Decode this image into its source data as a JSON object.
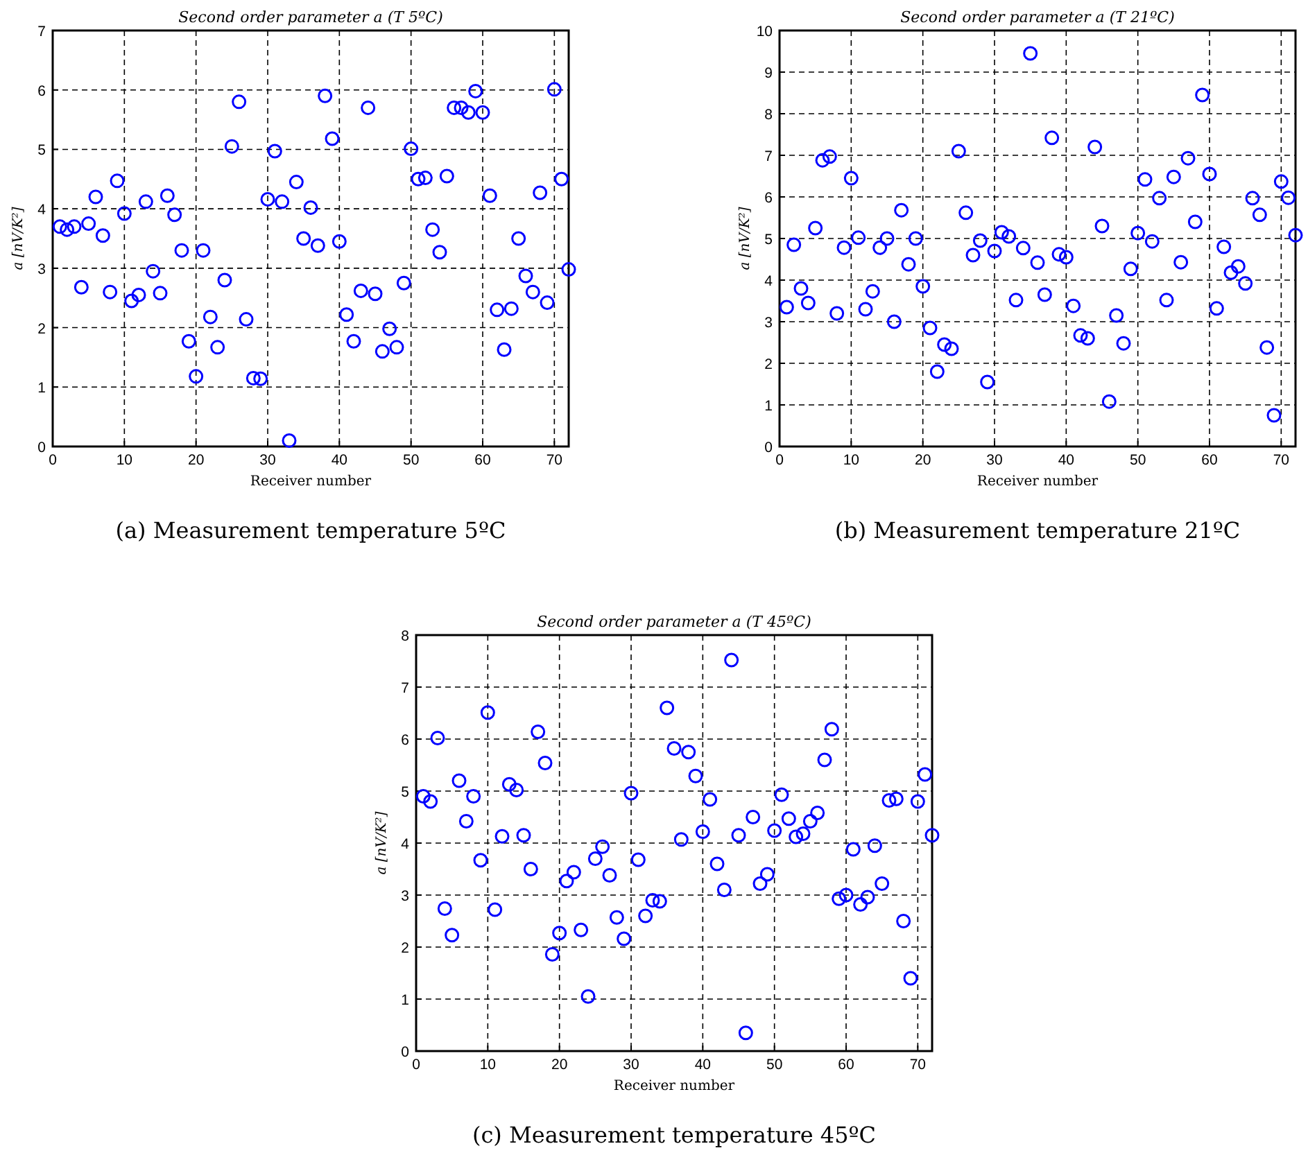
{
  "chart_data": [
    {
      "type": "scatter",
      "title": "Second order parameter a (T 5ºC)",
      "xlabel": "Receiver number",
      "ylabel": "a [nV/K²]",
      "annotations": [
        "(a) Measurement temperature 5ºC"
      ],
      "xlim": [
        0,
        72
      ],
      "xticks": [
        0,
        10,
        20,
        30,
        40,
        50,
        60,
        70
      ],
      "ylim": [
        0,
        7
      ],
      "yticks": [
        0,
        1,
        2,
        3,
        4,
        5,
        6,
        7
      ],
      "grid": true,
      "marker": "circle",
      "x": [
        1,
        2,
        3,
        4,
        5,
        6,
        7,
        8,
        9,
        10,
        11,
        12,
        13,
        14,
        15,
        16,
        17,
        18,
        19,
        20,
        21,
        22,
        23,
        24,
        25,
        26,
        27,
        28,
        29,
        30,
        31,
        32,
        33,
        34,
        35,
        36,
        37,
        38,
        39,
        40,
        41,
        42,
        43,
        44,
        45,
        46,
        47,
        48,
        49,
        50,
        51,
        52,
        53,
        54,
        55,
        56,
        57,
        58,
        59,
        60,
        61,
        62,
        63,
        64,
        65,
        66,
        67,
        68,
        69,
        70,
        71,
        72
      ],
      "series": [
        {
          "color": "#0000ff",
          "values": [
            3.7,
            3.65,
            3.7,
            2.68,
            3.75,
            4.2,
            3.55,
            2.6,
            4.47,
            3.92,
            2.45,
            2.55,
            4.12,
            2.95,
            2.58,
            4.22,
            3.9,
            3.3,
            1.77,
            1.18,
            3.3,
            2.18,
            1.67,
            2.8,
            5.05,
            5.8,
            2.14,
            1.15,
            1.14,
            4.16,
            4.97,
            4.12,
            0.1,
            4.45,
            3.5,
            4.02,
            3.38,
            5.9,
            5.18,
            3.45,
            2.22,
            1.77,
            2.62,
            5.7,
            2.57,
            1.6,
            1.98,
            1.67,
            2.75,
            5.01,
            4.5,
            4.52,
            3.65,
            3.27,
            4.55,
            5.7,
            5.7,
            5.62,
            5.98,
            5.62,
            4.22,
            2.3,
            1.63,
            2.32,
            3.5,
            2.87,
            2.6,
            4.27,
            2.42,
            6.01,
            4.5,
            2.98
          ]
        }
      ]
    },
    {
      "type": "scatter",
      "title": "Second order parameter a (T 21ºC)",
      "xlabel": "Receiver number",
      "ylabel": "a [nV/K²]",
      "annotations": [
        "(b) Measurement temperature 21ºC"
      ],
      "xlim": [
        0,
        72
      ],
      "xticks": [
        0,
        10,
        20,
        30,
        40,
        50,
        60,
        70
      ],
      "ylim": [
        0,
        10
      ],
      "yticks": [
        0,
        1,
        2,
        3,
        4,
        5,
        6,
        7,
        8,
        9,
        10
      ],
      "grid": true,
      "marker": "circle",
      "x": [
        1,
        2,
        3,
        4,
        5,
        6,
        7,
        8,
        9,
        10,
        11,
        12,
        13,
        14,
        15,
        16,
        17,
        18,
        19,
        20,
        21,
        22,
        23,
        24,
        25,
        26,
        27,
        28,
        29,
        30,
        31,
        32,
        33,
        34,
        35,
        36,
        37,
        38,
        39,
        40,
        41,
        42,
        43,
        44,
        45,
        46,
        47,
        48,
        49,
        50,
        51,
        52,
        53,
        54,
        55,
        56,
        57,
        58,
        59,
        60,
        61,
        62,
        63,
        64,
        65,
        66,
        67,
        68,
        69,
        70,
        71,
        72
      ],
      "series": [
        {
          "color": "#0000ff",
          "values": [
            3.35,
            4.85,
            3.8,
            3.45,
            5.25,
            6.88,
            6.97,
            3.2,
            4.78,
            6.45,
            5.02,
            3.3,
            3.73,
            4.78,
            5.0,
            3.0,
            5.68,
            4.38,
            5.0,
            3.85,
            2.85,
            1.8,
            2.45,
            2.35,
            7.1,
            5.62,
            4.6,
            4.95,
            1.55,
            4.7,
            5.15,
            5.05,
            3.52,
            4.77,
            9.45,
            4.42,
            3.65,
            7.42,
            4.62,
            4.55,
            3.38,
            2.67,
            2.6,
            7.2,
            5.3,
            1.08,
            3.15,
            2.48,
            4.27,
            5.13,
            6.42,
            4.93,
            5.97,
            3.52,
            6.48,
            4.43,
            6.93,
            5.4,
            8.45,
            6.55,
            3.32,
            4.8,
            4.18,
            4.33,
            3.92,
            5.97,
            5.57,
            2.38,
            0.75,
            6.37,
            5.98,
            5.08
          ]
        }
      ]
    },
    {
      "type": "scatter",
      "title": "Second order parameter a (T 45ºC)",
      "xlabel": "Receiver number",
      "ylabel": "a [nV/K²]",
      "annotations": [
        "(c) Measurement temperature 45ºC"
      ],
      "xlim": [
        0,
        72
      ],
      "xticks": [
        0,
        10,
        20,
        30,
        40,
        50,
        60,
        70
      ],
      "ylim": [
        0,
        8
      ],
      "yticks": [
        0,
        1,
        2,
        3,
        4,
        5,
        6,
        7,
        8
      ],
      "grid": true,
      "marker": "circle",
      "x": [
        1,
        2,
        3,
        4,
        5,
        6,
        7,
        8,
        9,
        10,
        11,
        12,
        13,
        14,
        15,
        16,
        17,
        18,
        19,
        20,
        21,
        22,
        23,
        24,
        25,
        26,
        27,
        28,
        29,
        30,
        31,
        32,
        33,
        34,
        35,
        36,
        37,
        38,
        39,
        40,
        41,
        42,
        43,
        44,
        45,
        46,
        47,
        48,
        49,
        50,
        51,
        52,
        53,
        54,
        55,
        56,
        57,
        58,
        59,
        60,
        61,
        62,
        63,
        64,
        65,
        66,
        67,
        68,
        69,
        70,
        71,
        72
      ],
      "series": [
        {
          "color": "#0000ff",
          "values": [
            4.9,
            4.8,
            6.02,
            2.74,
            2.23,
            5.2,
            4.42,
            4.9,
            3.67,
            6.51,
            2.72,
            4.13,
            5.13,
            5.02,
            4.15,
            3.5,
            6.14,
            5.54,
            1.86,
            2.27,
            3.27,
            3.44,
            2.33,
            1.05,
            3.7,
            3.93,
            3.38,
            2.57,
            2.16,
            4.96,
            3.68,
            2.6,
            2.9,
            2.88,
            6.6,
            5.82,
            4.07,
            5.75,
            5.29,
            4.22,
            4.84,
            3.6,
            3.1,
            7.52,
            4.15,
            0.35,
            4.5,
            3.22,
            3.4,
            4.24,
            4.93,
            4.47,
            4.12,
            4.18,
            4.42,
            4.58,
            5.6,
            6.19,
            2.93,
            3.0,
            3.88,
            2.82,
            2.96,
            3.95,
            3.22,
            4.82,
            4.85,
            2.5,
            1.4,
            4.8,
            5.32,
            4.15
          ]
        }
      ]
    }
  ]
}
